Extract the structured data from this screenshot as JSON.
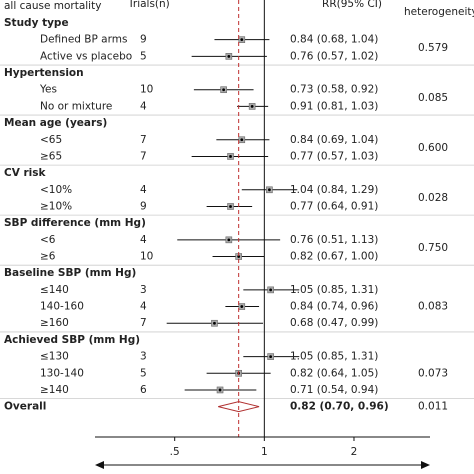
{
  "chart_data": {
    "type": "forest",
    "header": {
      "subgroup": "all cause mortality",
      "trials": "Trials(n)",
      "estimate": "RR(95% CI)",
      "heterogeneity": "heterogeneity"
    },
    "log_x": true,
    "xlim": [
      0.27,
      3.6
    ],
    "xticks": [
      {
        "value": 0.5,
        "label": ".5"
      },
      1,
      2
    ],
    "groups": [
      {
        "name": "Study type",
        "p_heterogeneity": "0.579",
        "rows": [
          {
            "label": "Defined BP arms",
            "trials": 9,
            "rr": 0.84,
            "lower": 0.68,
            "upper": 1.04,
            "value_label": "0.84 (0.68, 1.04)"
          },
          {
            "label": "Active vs placebo",
            "trials": 5,
            "rr": 0.76,
            "lower": 0.57,
            "upper": 1.02,
            "value_label": "0.76 (0.57, 1.02)"
          }
        ]
      },
      {
        "name": "Hypertension",
        "p_heterogeneity": "0.085",
        "rows": [
          {
            "label": "Yes",
            "trials": 10,
            "rr": 0.73,
            "lower": 0.58,
            "upper": 0.92,
            "value_label": "0.73 (0.58, 0.92)"
          },
          {
            "label": "No or mixture",
            "trials": 4,
            "rr": 0.91,
            "lower": 0.81,
            "upper": 1.03,
            "value_label": "0.91 (0.81, 1.03)"
          }
        ]
      },
      {
        "name": "Mean age (years)",
        "p_heterogeneity": "0.600",
        "rows": [
          {
            "label": "<65",
            "trials": 7,
            "rr": 0.84,
            "lower": 0.69,
            "upper": 1.04,
            "value_label": "0.84 (0.69, 1.04)"
          },
          {
            "label": "≥65",
            "trials": 7,
            "rr": 0.77,
            "lower": 0.57,
            "upper": 1.03,
            "value_label": "0.77 (0.57, 1.03)"
          }
        ]
      },
      {
        "name": "CV risk",
        "p_heterogeneity": "0.028",
        "rows": [
          {
            "label": "<10%",
            "trials": 4,
            "rr": 1.04,
            "lower": 0.84,
            "upper": 1.29,
            "value_label": "1.04 (0.84, 1.29)"
          },
          {
            "label": "≥10%",
            "trials": 9,
            "rr": 0.77,
            "lower": 0.64,
            "upper": 0.91,
            "value_label": "0.77 (0.64, 0.91)"
          }
        ]
      },
      {
        "name": "SBP difference (mm Hg)",
        "p_heterogeneity": "0.750",
        "rows": [
          {
            "label": "<6",
            "trials": 4,
            "rr": 0.76,
            "lower": 0.51,
            "upper": 1.13,
            "value_label": "0.76 (0.51, 1.13)"
          },
          {
            "label": "≥6",
            "trials": 10,
            "rr": 0.82,
            "lower": 0.67,
            "upper": 1.0,
            "value_label": "0.82 (0.67, 1.00)"
          }
        ]
      },
      {
        "name": "Baseline SBP (mm Hg)",
        "p_heterogeneity": "0.083",
        "rows": [
          {
            "label": "≤140",
            "trials": 3,
            "rr": 1.05,
            "lower": 0.85,
            "upper": 1.31,
            "value_label": "1.05 (0.85, 1.31)"
          },
          {
            "label": "140-160",
            "trials": 4,
            "rr": 0.84,
            "lower": 0.74,
            "upper": 0.96,
            "value_label": "0.84 (0.74, 0.96)"
          },
          {
            "label": "≥160",
            "trials": 7,
            "rr": 0.68,
            "lower": 0.47,
            "upper": 0.99,
            "value_label": "0.68 (0.47, 0.99)"
          }
        ]
      },
      {
        "name": "Achieved SBP  (mm Hg)",
        "p_heterogeneity": "0.073",
        "rows": [
          {
            "label": "≤130",
            "trials": 3,
            "rr": 1.05,
            "lower": 0.85,
            "upper": 1.31,
            "value_label": "1.05 (0.85, 1.31)"
          },
          {
            "label": "130-140",
            "trials": 5,
            "rr": 0.82,
            "lower": 0.64,
            "upper": 1.05,
            "value_label": "0.82 (0.64, 1.05)"
          },
          {
            "label": "≥140",
            "trials": 6,
            "rr": 0.71,
            "lower": 0.54,
            "upper": 0.94,
            "value_label": "0.71 (0.54, 0.94)"
          }
        ]
      }
    ],
    "overall": {
      "label": "Overall",
      "rr": 0.82,
      "lower": 0.7,
      "upper": 0.96,
      "value_label": "0.82 (0.70, 0.96)",
      "p_heterogeneity": "0.011"
    }
  }
}
